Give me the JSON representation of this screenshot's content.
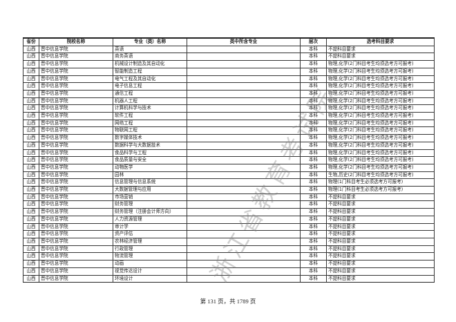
{
  "headers": [
    "省份",
    "院校名称",
    "专业（类）名称",
    "类中所含专业",
    "层次",
    "选考科目要求"
  ],
  "rows": [
    [
      "山西",
      "晋中信息学院",
      "英语",
      "",
      "本科",
      "不提科目要求"
    ],
    [
      "山西",
      "晋中信息学院",
      "商务英语",
      "",
      "本科",
      "不提科目要求"
    ],
    [
      "山西",
      "晋中信息学院",
      "机械设计制造及其自动化",
      "",
      "本科",
      "物理,化学(2门科目考生均须选考方可报考)"
    ],
    [
      "山西",
      "晋中信息学院",
      "智能制造工程",
      "",
      "本科",
      "物理,化学(2门科目考生均须选考方可报考)"
    ],
    [
      "山西",
      "晋中信息学院",
      "电气工程及其自动化",
      "",
      "本科",
      "物理,化学(2门科目考生均须选考方可报考)"
    ],
    [
      "山西",
      "晋中信息学院",
      "电子信息工程",
      "",
      "本科",
      "物理,化学(2门科目考生均须选考方可报考)"
    ],
    [
      "山西",
      "晋中信息学院",
      "通信工程",
      "",
      "本科",
      "物理,化学(2门科目考生均须选考方可报考)"
    ],
    [
      "山西",
      "晋中信息学院",
      "机器人工程",
      "",
      "本科",
      "物理,化学(2门科目考生均须选考方可报考)"
    ],
    [
      "山西",
      "晋中信息学院",
      "计算机科学与技术",
      "",
      "本科",
      "物理,化学(2门科目考生均须选考方可报考)"
    ],
    [
      "山西",
      "晋中信息学院",
      "软件工程",
      "",
      "本科",
      "物理,化学(2门科目考生均须选考方可报考)"
    ],
    [
      "山西",
      "晋中信息学院",
      "网络工程",
      "",
      "本科",
      "物理,化学(2门科目考生均须选考方可报考)"
    ],
    [
      "山西",
      "晋中信息学院",
      "物联网工程",
      "",
      "本科",
      "物理,化学(2门科目考生均须选考方可报考)"
    ],
    [
      "山西",
      "晋中信息学院",
      "数字媒体技术",
      "",
      "本科",
      "物理,化学(2门科目考生均须选考方可报考)"
    ],
    [
      "山西",
      "晋中信息学院",
      "数据科学与大数据技术",
      "",
      "本科",
      "物理,化学(2门科目考生均须选考方可报考)"
    ],
    [
      "山西",
      "晋中信息学院",
      "食品科学与工程",
      "",
      "本科",
      "物理,化学(2门科目考生均须选考方可报考)"
    ],
    [
      "山西",
      "晋中信息学院",
      "食品质量与安全",
      "",
      "本科",
      "物理,化学(2门科目考生均须选考方可报考)"
    ],
    [
      "山西",
      "晋中信息学院",
      "动物医学",
      "",
      "本科",
      "物理,化学(2门科目考生均须选考方可报考)"
    ],
    [
      "山西",
      "晋中信息学院",
      "园林",
      "",
      "本科",
      "生物,历史(2门科目考生均须选考方可报考)"
    ],
    [
      "山西",
      "晋中信息学院",
      "信息管理与信息系统",
      "",
      "本科",
      "物理(1门科目考生必须选考方可报考)"
    ],
    [
      "山西",
      "晋中信息学院",
      "大数据管理与应用",
      "",
      "本科",
      "物理(1门科目考生必须选考方可报考)"
    ],
    [
      "山西",
      "晋中信息学院",
      "市场营销",
      "",
      "本科",
      "不提科目要求"
    ],
    [
      "山西",
      "晋中信息学院",
      "财务管理",
      "",
      "本科",
      "不提科目要求"
    ],
    [
      "山西",
      "晋中信息学院",
      "财务管理（注册会计师方向）",
      "",
      "本科",
      "不提科目要求"
    ],
    [
      "山西",
      "晋中信息学院",
      "人力资源管理",
      "",
      "本科",
      "不提科目要求"
    ],
    [
      "山西",
      "晋中信息学院",
      "审计学",
      "",
      "本科",
      "不提科目要求"
    ],
    [
      "山西",
      "晋中信息学院",
      "资产评估",
      "",
      "本科",
      "不提科目要求"
    ],
    [
      "山西",
      "晋中信息学院",
      "农林经济管理",
      "",
      "本科",
      "不提科目要求"
    ],
    [
      "山西",
      "晋中信息学院",
      "行政管理",
      "",
      "本科",
      "不提科目要求"
    ],
    [
      "山西",
      "晋中信息学院",
      "物流管理",
      "",
      "本科",
      "不提科目要求"
    ],
    [
      "山西",
      "晋中信息学院",
      "动画",
      "",
      "本科",
      "不提科目要求"
    ],
    [
      "山西",
      "晋中信息学院",
      "视觉传达设计",
      "",
      "本科",
      "不提科目要求"
    ],
    [
      "山西",
      "晋中信息学院",
      "环境设计",
      "",
      "本科",
      "不提科目要求"
    ]
  ],
  "watermark": "浙江省教育考试院",
  "footer": "第 131 页，共 1789 页"
}
